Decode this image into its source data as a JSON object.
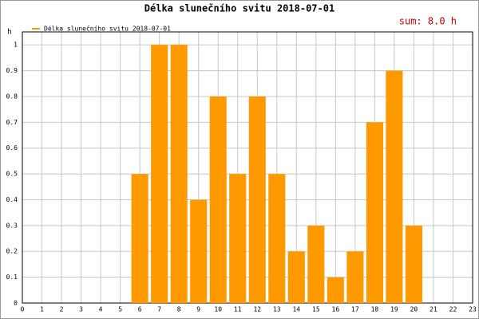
{
  "chart_data": {
    "type": "bar",
    "title": "Délka slunečního svitu 2018-07-01",
    "annotation": "sum: 8.0 h",
    "y_label": "h",
    "x": [
      6,
      7,
      8,
      9,
      10,
      11,
      12,
      13,
      14,
      15,
      16,
      17,
      18,
      19,
      20
    ],
    "series": [
      {
        "name": "Délka slunečního svitu 2018-07-01",
        "color": "#ff9900",
        "values": [
          0.5,
          1,
          1,
          0.4,
          0.8,
          0.5,
          0.8,
          0.5,
          0.2,
          0.3,
          0.1,
          0.2,
          0.7,
          0.9,
          0.3
        ]
      }
    ],
    "xlim": [
      0,
      23
    ],
    "xticks": [
      0,
      1,
      2,
      3,
      4,
      5,
      6,
      7,
      8,
      9,
      10,
      11,
      12,
      13,
      14,
      15,
      16,
      17,
      18,
      19,
      20,
      21,
      22,
      23
    ],
    "ylim": [
      0,
      1.05
    ],
    "yticks": [
      0,
      0.1,
      0.2,
      0.3,
      0.4,
      0.5,
      0.6,
      0.7,
      0.8,
      0.9,
      1
    ],
    "grid": true
  }
}
